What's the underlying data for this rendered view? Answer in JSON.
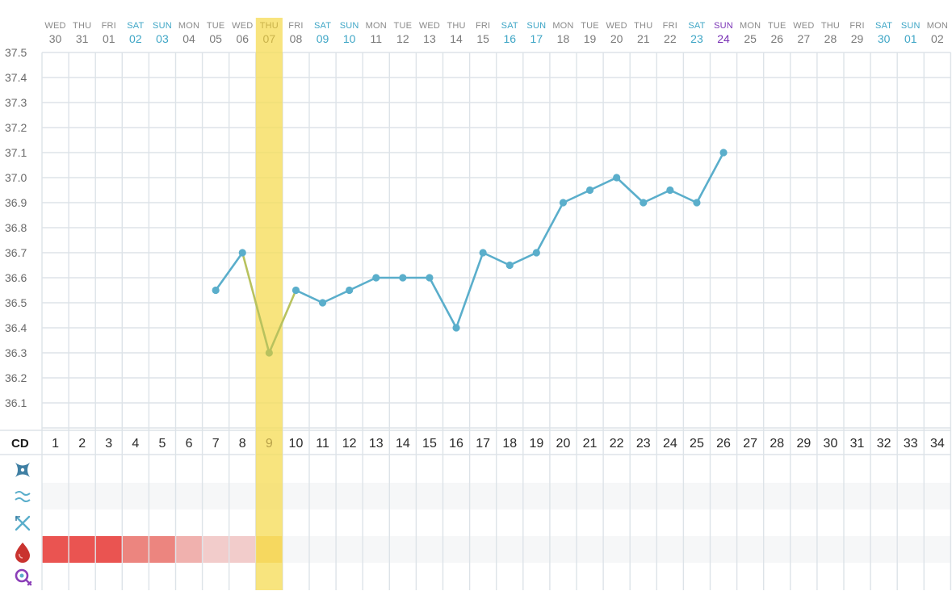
{
  "colors": {
    "line": "#5aaecb",
    "line_highlight": "#b8c25e",
    "highlight": "#f6dd5a",
    "weekend_sat": "#3fa6c6",
    "weekend_sun": "#3fa6c6",
    "today": "#7a33b5",
    "grid": "#dde3e8",
    "period_heavy": "#ea5451",
    "period_medium": "#ec857f",
    "period_light": "#f0b1ae",
    "period_spotting": "#f2cccb"
  },
  "chart_data": {
    "type": "line",
    "title": "",
    "xlabel": "",
    "ylabel": "",
    "ylim": [
      36.0,
      37.5
    ],
    "yticks": [
      "37.5",
      "37.4",
      "37.3",
      "37.2",
      "37.1",
      "37.0",
      "36.9",
      "36.8",
      "36.7",
      "36.6",
      "36.5",
      "36.4",
      "36.3",
      "36.2",
      "36.1"
    ],
    "grid": true,
    "days": [
      {
        "dow": "WED",
        "date": "30",
        "cd": "1"
      },
      {
        "dow": "THU",
        "date": "31",
        "cd": "2"
      },
      {
        "dow": "FRI",
        "date": "01",
        "cd": "3"
      },
      {
        "dow": "SAT",
        "date": "02",
        "cd": "4",
        "style": "weekend"
      },
      {
        "dow": "SUN",
        "date": "03",
        "cd": "5",
        "style": "weekend"
      },
      {
        "dow": "MON",
        "date": "04",
        "cd": "6"
      },
      {
        "dow": "TUE",
        "date": "05",
        "cd": "7"
      },
      {
        "dow": "WED",
        "date": "06",
        "cd": "8"
      },
      {
        "dow": "THU",
        "date": "07",
        "cd": "9",
        "style": "highlight"
      },
      {
        "dow": "FRI",
        "date": "08",
        "cd": "10"
      },
      {
        "dow": "SAT",
        "date": "09",
        "cd": "11",
        "style": "weekend"
      },
      {
        "dow": "SUN",
        "date": "10",
        "cd": "12",
        "style": "weekend"
      },
      {
        "dow": "MON",
        "date": "11",
        "cd": "13"
      },
      {
        "dow": "TUE",
        "date": "12",
        "cd": "14"
      },
      {
        "dow": "WED",
        "date": "13",
        "cd": "15"
      },
      {
        "dow": "THU",
        "date": "14",
        "cd": "16"
      },
      {
        "dow": "FRI",
        "date": "15",
        "cd": "17"
      },
      {
        "dow": "SAT",
        "date": "16",
        "cd": "18",
        "style": "weekend"
      },
      {
        "dow": "SUN",
        "date": "17",
        "cd": "19",
        "style": "weekend"
      },
      {
        "dow": "MON",
        "date": "18",
        "cd": "20"
      },
      {
        "dow": "TUE",
        "date": "19",
        "cd": "21"
      },
      {
        "dow": "WED",
        "date": "20",
        "cd": "22"
      },
      {
        "dow": "THU",
        "date": "21",
        "cd": "23"
      },
      {
        "dow": "FRI",
        "date": "22",
        "cd": "24"
      },
      {
        "dow": "SAT",
        "date": "23",
        "cd": "25",
        "style": "weekend"
      },
      {
        "dow": "SUN",
        "date": "24",
        "cd": "26",
        "style": "today"
      },
      {
        "dow": "MON",
        "date": "25",
        "cd": "27"
      },
      {
        "dow": "TUE",
        "date": "26",
        "cd": "28"
      },
      {
        "dow": "WED",
        "date": "27",
        "cd": "29"
      },
      {
        "dow": "THU",
        "date": "28",
        "cd": "30"
      },
      {
        "dow": "FRI",
        "date": "29",
        "cd": "31"
      },
      {
        "dow": "SAT",
        "date": "30",
        "cd": "32",
        "style": "weekend"
      },
      {
        "dow": "SUN",
        "date": "01",
        "cd": "33",
        "style": "weekend"
      },
      {
        "dow": "MON",
        "date": "02",
        "cd": "34"
      }
    ],
    "series": [
      {
        "values": [
          null,
          null,
          null,
          null,
          null,
          null,
          36.55,
          36.7,
          36.3,
          36.55,
          36.5,
          36.55,
          36.6,
          36.6,
          36.6,
          36.4,
          36.7,
          36.65,
          36.7,
          36.9,
          36.95,
          37.0,
          36.9,
          36.95,
          36.9,
          37.1,
          null,
          null,
          null,
          null,
          null,
          null,
          null,
          null
        ]
      }
    ]
  },
  "cd_label": "CD",
  "tracking_rows": [
    {
      "icon": "cervix-icon"
    },
    {
      "icon": "cervical-fluid-icon"
    },
    {
      "icon": "intercourse-icon"
    },
    {
      "icon": "period-drop-icon",
      "period": [
        "heavy",
        "heavy",
        "heavy",
        "medium",
        "medium",
        "light",
        "spotting",
        "spotting",
        "highlight"
      ]
    },
    {
      "icon": "ovulation-test-icon"
    }
  ]
}
